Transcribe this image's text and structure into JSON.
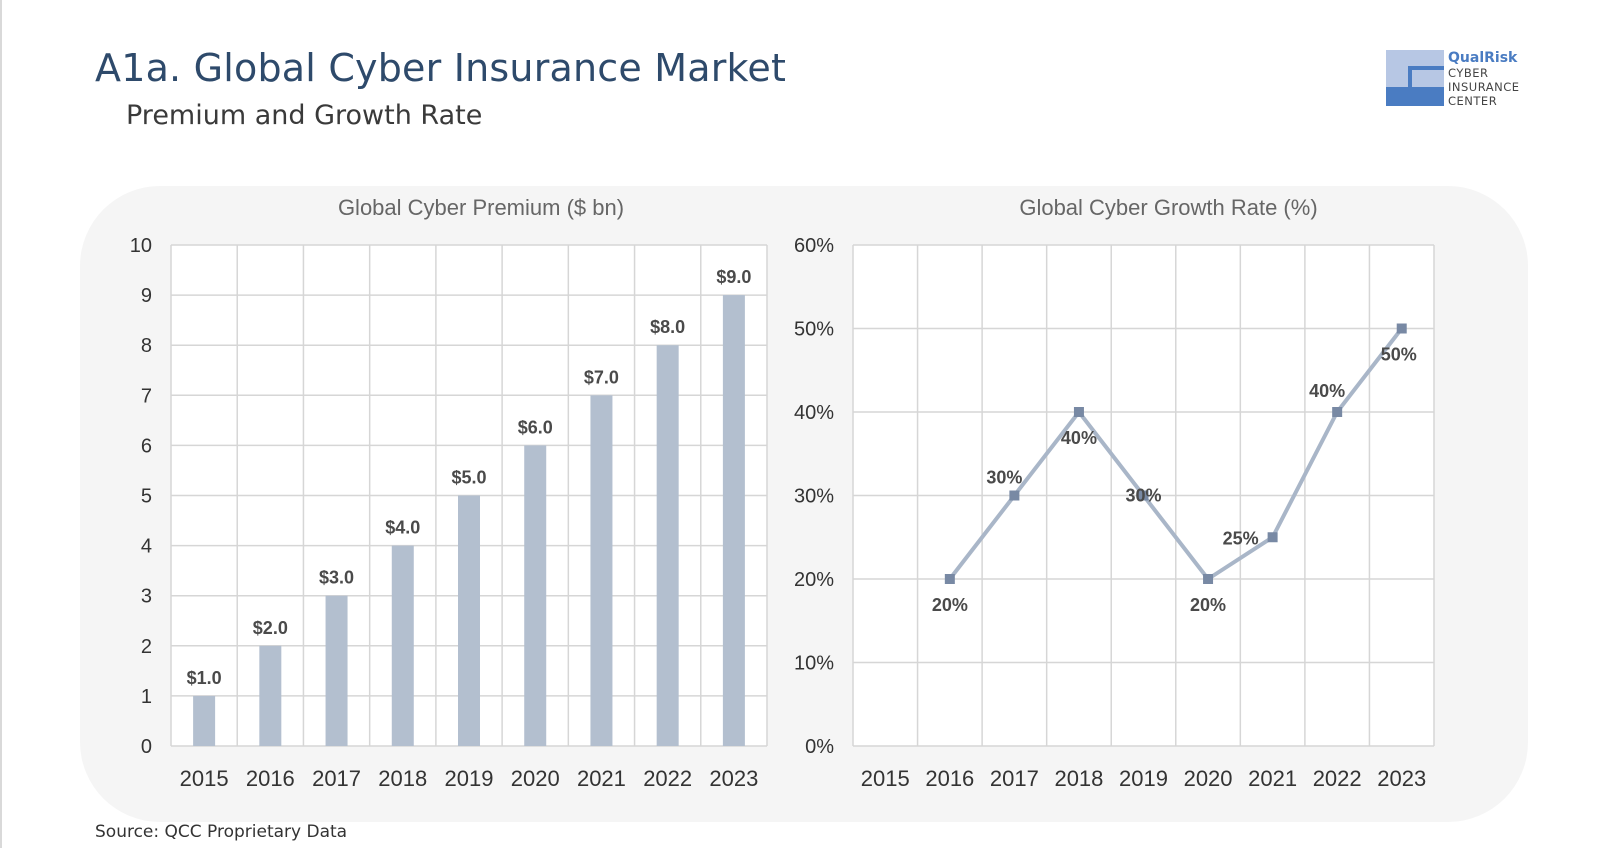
{
  "header": {
    "title": "A1a. Global Cyber Insurance Market",
    "subtitle": "Premium and Growth Rate"
  },
  "logo": {
    "brand": "QualRisk",
    "lines": [
      "CYBER",
      "INSURANCE",
      "CENTER"
    ]
  },
  "footer": {
    "source": "Source: QCC Proprietary Data"
  },
  "colors": {
    "title": "#2e4a6b",
    "bar": "#b3bfcf",
    "line": "#a9b6c8",
    "marker": "#7889a4",
    "grid": "#d6d6d6",
    "panel": "#f5f5f5",
    "logo_light": "#b7c7e4",
    "logo_dark": "#4a7cc2"
  },
  "chart_data": [
    {
      "type": "bar",
      "title": "Global Cyber Premium ($ bn)",
      "categories": [
        "2015",
        "2016",
        "2017",
        "2018",
        "2019",
        "2020",
        "2021",
        "2022",
        "2023"
      ],
      "values": [
        1.0,
        2.0,
        3.0,
        4.0,
        5.0,
        6.0,
        7.0,
        8.0,
        9.0
      ],
      "data_labels": [
        "$1.0",
        "$2.0",
        "$3.0",
        "$4.0",
        "$5.0",
        "$6.0",
        "$7.0",
        "$8.0",
        "$9.0"
      ],
      "ylim": [
        0,
        10
      ],
      "yticks": [
        "0",
        "1",
        "2",
        "3",
        "4",
        "5",
        "6",
        "7",
        "8",
        "9",
        "10"
      ],
      "grid": true
    },
    {
      "type": "line",
      "title": "Global Cyber Growth Rate (%)",
      "categories": [
        "2015",
        "2016",
        "2017",
        "2018",
        "2019",
        "2020",
        "2021",
        "2022",
        "2023"
      ],
      "values": [
        null,
        20,
        30,
        40,
        30,
        20,
        25,
        40,
        50
      ],
      "data_labels": [
        "",
        "20%",
        "30%",
        "40%",
        "30%",
        "20%",
        "25%",
        "40%",
        "50%"
      ],
      "ylim": [
        0,
        60
      ],
      "yticks": [
        "0%",
        "10%",
        "20%",
        "30%",
        "40%",
        "50%",
        "60%"
      ],
      "grid": true
    }
  ]
}
